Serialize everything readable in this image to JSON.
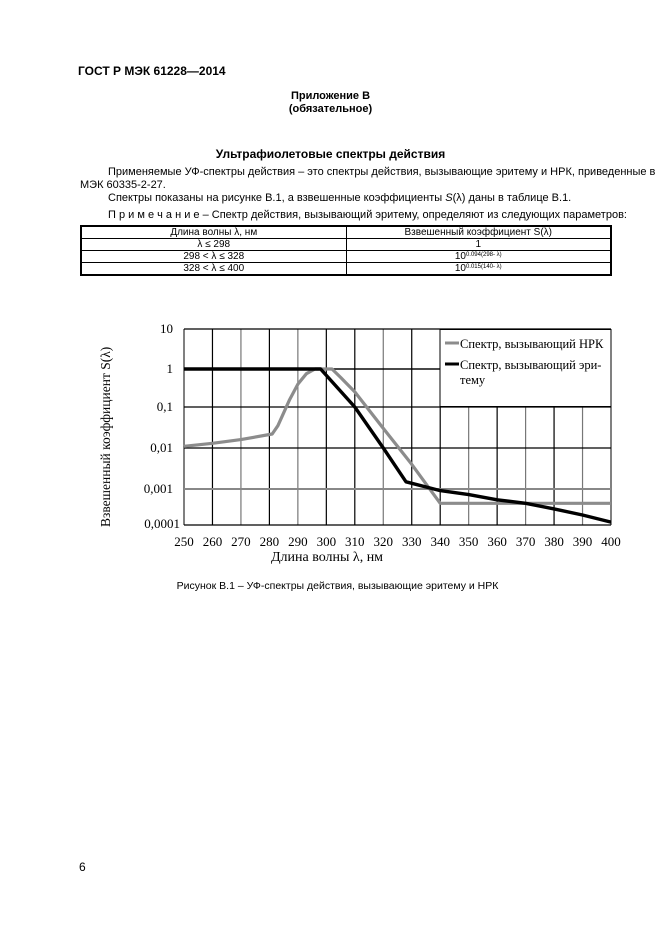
{
  "header": {
    "doc_id": "ГОСТ Р МЭК 61228—2014"
  },
  "appendix": {
    "title": "Приложение В",
    "status": "(обязательное)"
  },
  "section_title": "Ультрафиолетовые спектры действия",
  "paragraphs": {
    "p1_line1": "Применяемые УФ-спектры действия – это спектры действия, вызывающие эритему и НРК, приведенные в",
    "p1_line2": "МЭК 60335-2-27.",
    "p2_pre": "Спектры показаны на рисунке В.1, а взвешенные коэффициенты ",
    "p2_sym": "S",
    "p2_post": "(λ) даны в таблице В.1.",
    "note_label": "П р и м е ч а н и е",
    "note_text": " – Спектр действия, вызывающий эритему, определяют из следующих параметров:"
  },
  "table": {
    "headers": [
      "Длина волны λ, нм",
      "Взвешенный коэффициент S(λ)"
    ],
    "rows": [
      {
        "range": "λ ≤ 298",
        "base": "1",
        "exp": ""
      },
      {
        "range": "298 < λ ≤ 328",
        "base": "10",
        "exp": "0.094(298- λ)"
      },
      {
        "range": "328 < λ ≤ 400",
        "base": "10",
        "exp": "0.015(140- λ)"
      }
    ]
  },
  "chart_data": {
    "type": "line",
    "title": "",
    "xlabel": "Длина волны λ, нм",
    "ylabel": "Взвешенный коэффициент S(λ)",
    "x_ticks": [
      "250",
      "260",
      "270",
      "280",
      "290",
      "300",
      "310",
      "320",
      "330",
      "340",
      "350",
      "360",
      "370",
      "380",
      "390",
      "400"
    ],
    "y_ticks": [
      "10",
      "1",
      "0,1",
      "0,01",
      "0,001",
      "0,0001"
    ],
    "y_scale": "log",
    "xlim": [
      250,
      400
    ],
    "ylim": [
      0.0001,
      10
    ],
    "grid": true,
    "legend_position": "upper right",
    "series": [
      {
        "name": "Спектр, вызывающий НРК",
        "color": "#8c8c8c",
        "points": [
          [
            250,
            0.011
          ],
          [
            260,
            0.013
          ],
          [
            270,
            0.016
          ],
          [
            281,
            0.022
          ],
          [
            283,
            0.035
          ],
          [
            287,
            0.15
          ],
          [
            290,
            0.4
          ],
          [
            293,
            0.75
          ],
          [
            296,
            1.0
          ],
          [
            302,
            1.0
          ],
          [
            305,
            0.6
          ],
          [
            310,
            0.25
          ],
          [
            320,
            0.03
          ],
          [
            330,
            0.004
          ],
          [
            340,
            0.0004
          ],
          [
            350,
            0.0004
          ],
          [
            360,
            0.0004
          ],
          [
            370,
            0.0004
          ],
          [
            380,
            0.0004
          ],
          [
            390,
            0.0004
          ],
          [
            400,
            0.0004
          ]
        ]
      },
      {
        "name": "Спектр, вызывающий эритему",
        "color": "#000000",
        "points": [
          [
            250,
            1
          ],
          [
            298,
            1
          ],
          [
            310,
            0.1
          ],
          [
            320,
            0.01
          ],
          [
            328,
            0.0015
          ],
          [
            340,
            0.0009
          ],
          [
            350,
            0.0007
          ],
          [
            360,
            0.0005
          ],
          [
            370,
            0.0004
          ],
          [
            380,
            0.00028
          ],
          [
            390,
            0.00019
          ],
          [
            400,
            0.00012
          ]
        ]
      }
    ]
  },
  "legend": {
    "item1": "Спектр, вызывающий НРК",
    "item2_line1": "Спектр, вызывающий эри-",
    "item2_line2": "тему"
  },
  "figure_caption": "Рисунок В.1 – УФ-спектры действия, вызывающие эритему и НРК",
  "page_number": "6"
}
